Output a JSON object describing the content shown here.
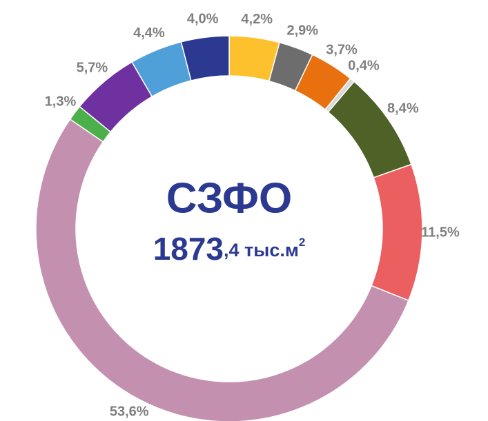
{
  "chart_data": {
    "type": "donut",
    "title": "СЗФО",
    "center_value": {
      "main": "1873",
      "rest": ",4 тыс.м",
      "sup": "2"
    },
    "values": [
      4.2,
      2.9,
      3.7,
      0.4,
      8.4,
      11.5,
      53.6,
      1.3,
      5.7,
      4.4,
      4.0
    ],
    "value_labels": [
      "4,2%",
      "2,9%",
      "3,7%",
      "0,4%",
      "8,4%",
      "11,5%",
      "53,6%",
      "1,3%",
      "5,7%",
      "4,4%",
      "4,0%"
    ],
    "colors": [
      "#fec12e",
      "#6d6d6d",
      "#e8700f",
      "#d9d9d9",
      "#4e6127",
      "#eb5f61",
      "#c490b0",
      "#4cb04a",
      "#7031a0",
      "#4fa0d8",
      "#2b3990"
    ]
  }
}
